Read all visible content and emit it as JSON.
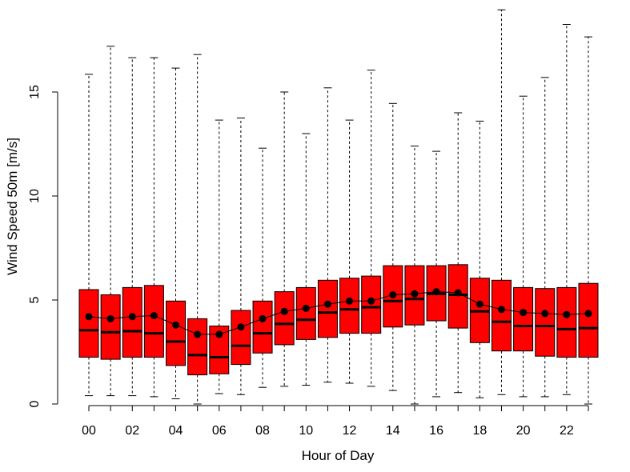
{
  "chart_data": {
    "type": "box",
    "xlabel": "Hour of Day",
    "ylabel": "Wind Speed 50m [m/s]",
    "ylim": [
      0,
      19
    ],
    "yticks": [
      0,
      5,
      10,
      15
    ],
    "ytick_labels": [
      "0",
      "5",
      "10",
      "15"
    ],
    "categories": [
      "00",
      "01",
      "02",
      "03",
      "04",
      "05",
      "06",
      "07",
      "08",
      "09",
      "10",
      "11",
      "12",
      "13",
      "14",
      "15",
      "16",
      "17",
      "18",
      "19",
      "20",
      "21",
      "22",
      "23"
    ],
    "xtick_labels": [
      "00",
      "02",
      "04",
      "06",
      "08",
      "10",
      "12",
      "14",
      "16",
      "18",
      "20",
      "22"
    ],
    "box_color": "#ff0000",
    "whisker_min": [
      0.4,
      0.4,
      0.4,
      0.35,
      0.25,
      0.0,
      0.5,
      0.45,
      0.8,
      0.85,
      0.9,
      1.05,
      1.0,
      0.85,
      0.65,
      0.0,
      0.35,
      0.55,
      0.3,
      0.45,
      0.35,
      0.35,
      0.45,
      0.0
    ],
    "q1": [
      2.25,
      2.15,
      2.25,
      2.25,
      1.85,
      1.4,
      1.45,
      1.9,
      2.45,
      2.85,
      3.1,
      3.2,
      3.4,
      3.4,
      3.7,
      3.8,
      4.0,
      3.65,
      2.95,
      2.55,
      2.55,
      2.3,
      2.25,
      2.25
    ],
    "median": [
      3.55,
      3.45,
      3.5,
      3.4,
      3.0,
      2.35,
      2.25,
      2.8,
      3.4,
      3.85,
      4.05,
      4.4,
      4.55,
      4.65,
      4.95,
      5.05,
      5.3,
      5.25,
      4.45,
      3.95,
      3.75,
      3.75,
      3.6,
      3.65
    ],
    "q3": [
      5.5,
      5.25,
      5.6,
      5.7,
      4.95,
      4.1,
      3.75,
      4.5,
      4.95,
      5.4,
      5.6,
      5.95,
      6.05,
      6.15,
      6.65,
      6.65,
      6.65,
      6.7,
      6.05,
      5.95,
      5.6,
      5.55,
      5.6,
      5.8
    ],
    "whisker_max": [
      15.85,
      17.2,
      16.65,
      16.65,
      16.15,
      16.8,
      13.65,
      13.75,
      12.3,
      15.0,
      13.0,
      15.2,
      13.65,
      16.05,
      14.45,
      12.4,
      12.15,
      14.0,
      13.6,
      18.95,
      14.8,
      15.7,
      18.25,
      17.65
    ],
    "mean": [
      4.2,
      4.1,
      4.2,
      4.25,
      3.8,
      3.35,
      3.35,
      3.7,
      4.1,
      4.45,
      4.6,
      4.8,
      4.95,
      4.95,
      5.25,
      5.3,
      5.4,
      5.35,
      4.8,
      4.55,
      4.4,
      4.35,
      4.3,
      4.35
    ],
    "mean_series_color": "#000000"
  }
}
